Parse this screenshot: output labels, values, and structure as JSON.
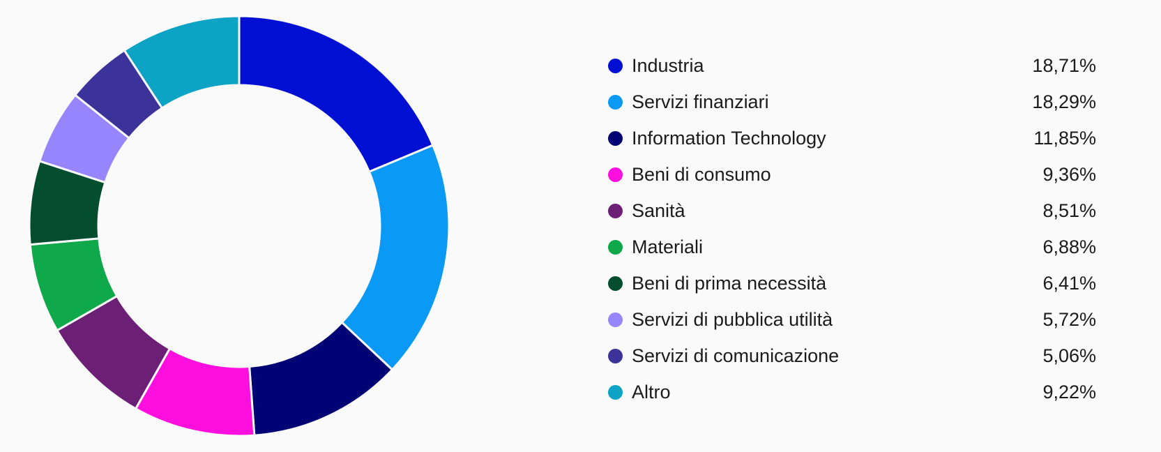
{
  "chart_data": {
    "type": "pie",
    "donut": true,
    "legend_position": "right",
    "categories": [
      "Industria",
      "Servizi finanziari",
      "Information Technology",
      "Beni di consumo",
      "Sanità",
      "Materiali",
      "Beni di prima necessità",
      "Servizi di pubblica utilità",
      "Servizi di comunicazione",
      "Altro"
    ],
    "values": [
      18.71,
      18.29,
      11.85,
      9.36,
      8.51,
      6.88,
      6.41,
      5.72,
      5.06,
      9.22
    ],
    "value_labels": [
      "18,71%",
      "18,29%",
      "11,85%",
      "9,36%",
      "8,51%",
      "6,88%",
      "6,41%",
      "5,72%",
      "5,06%",
      "9,22%"
    ],
    "colors": [
      "#000fd1",
      "#0a99f5",
      "#000373",
      "#ff0fde",
      "#6b1f75",
      "#0fa84a",
      "#044d2e",
      "#9685fc",
      "#3b3399",
      "#0da3c4"
    ]
  }
}
